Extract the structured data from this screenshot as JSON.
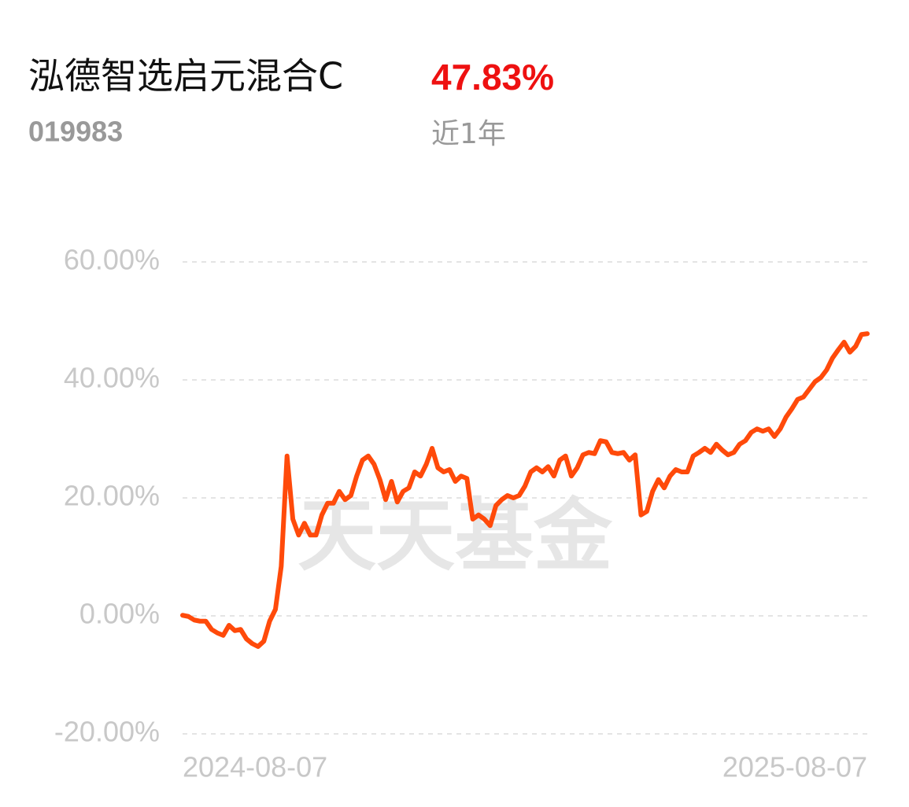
{
  "header": {
    "title": "泓德智选启元混合C",
    "return": "47.83%",
    "code": "019983",
    "period": "近1年"
  },
  "watermark": "天天基金",
  "chart_data": {
    "type": "line",
    "categories": [
      "2024-08-07",
      null,
      null,
      null,
      null,
      null,
      null,
      null,
      null,
      null,
      null,
      null,
      null,
      null,
      null,
      null,
      null,
      null,
      null,
      null,
      null,
      null,
      null,
      null,
      null,
      null,
      null,
      null,
      null,
      null,
      null,
      null,
      null,
      null,
      null,
      null,
      null,
      null,
      null,
      null,
      null,
      null,
      null,
      null,
      null,
      null,
      null,
      null,
      null,
      null,
      null,
      null,
      null,
      null,
      null,
      null,
      null,
      null,
      null,
      null,
      null,
      null,
      null,
      null,
      null,
      null,
      null,
      null,
      null,
      null,
      null,
      null,
      null,
      null,
      null,
      null,
      null,
      null,
      null,
      null,
      null,
      null,
      null,
      null,
      null,
      null,
      null,
      null,
      null,
      null,
      null,
      null,
      null,
      null,
      null,
      null,
      null,
      null,
      null,
      null,
      null,
      null,
      null,
      null,
      null,
      null,
      null,
      null,
      null,
      null,
      null,
      null,
      null,
      null,
      null,
      null,
      null,
      null,
      "2025-08-07"
    ],
    "series": [
      {
        "color": "#ff4a0a",
        "values": [
          0.1,
          -0.1,
          -0.7,
          -0.9,
          -0.9,
          -2.3,
          -2.9,
          -3.3,
          -1.6,
          -2.5,
          -2.3,
          -3.9,
          -4.7,
          -5.2,
          -4.3,
          -0.9,
          1.1,
          8.4,
          27.1,
          16.4,
          13.7,
          15.7,
          13.7,
          13.7,
          17.1,
          19.1,
          19.1,
          21.1,
          19.7,
          20.4,
          23.7,
          26.4,
          27.1,
          25.7,
          23.1,
          19.7,
          22.8,
          19.3,
          21.1,
          21.7,
          24.4,
          23.7,
          25.7,
          28.4,
          25.1,
          24.4,
          24.8,
          22.8,
          23.7,
          23.3,
          16.4,
          17.1,
          16.4,
          15.3,
          18.7,
          19.7,
          20.4,
          20.0,
          20.4,
          22.0,
          24.4,
          25.1,
          24.4,
          25.3,
          23.7,
          26.4,
          27.1,
          23.7,
          25.1,
          27.3,
          27.7,
          27.5,
          29.7,
          29.5,
          27.7,
          27.5,
          27.7,
          26.4,
          27.3,
          17.1,
          17.7,
          21.1,
          23.1,
          21.7,
          23.7,
          24.8,
          24.4,
          24.4,
          27.1,
          27.7,
          28.4,
          27.7,
          29.1,
          28.1,
          27.3,
          27.7,
          29.1,
          29.7,
          31.1,
          31.7,
          31.3,
          31.7,
          30.4,
          31.7,
          33.7,
          35.1,
          36.7,
          37.1,
          38.4,
          39.7,
          40.4,
          41.7,
          43.7,
          45.1,
          46.4,
          44.7,
          45.7,
          47.7,
          47.83
        ]
      }
    ],
    "ylim": [
      -20,
      60
    ],
    "yticks": [
      {
        "value": -20,
        "label": "-20.00%"
      },
      {
        "value": 0,
        "label": "0.00%"
      },
      {
        "value": 20,
        "label": "20.00%"
      },
      {
        "value": 40,
        "label": "40.00%"
      },
      {
        "value": 60,
        "label": "60.00%"
      }
    ],
    "grid": true
  }
}
